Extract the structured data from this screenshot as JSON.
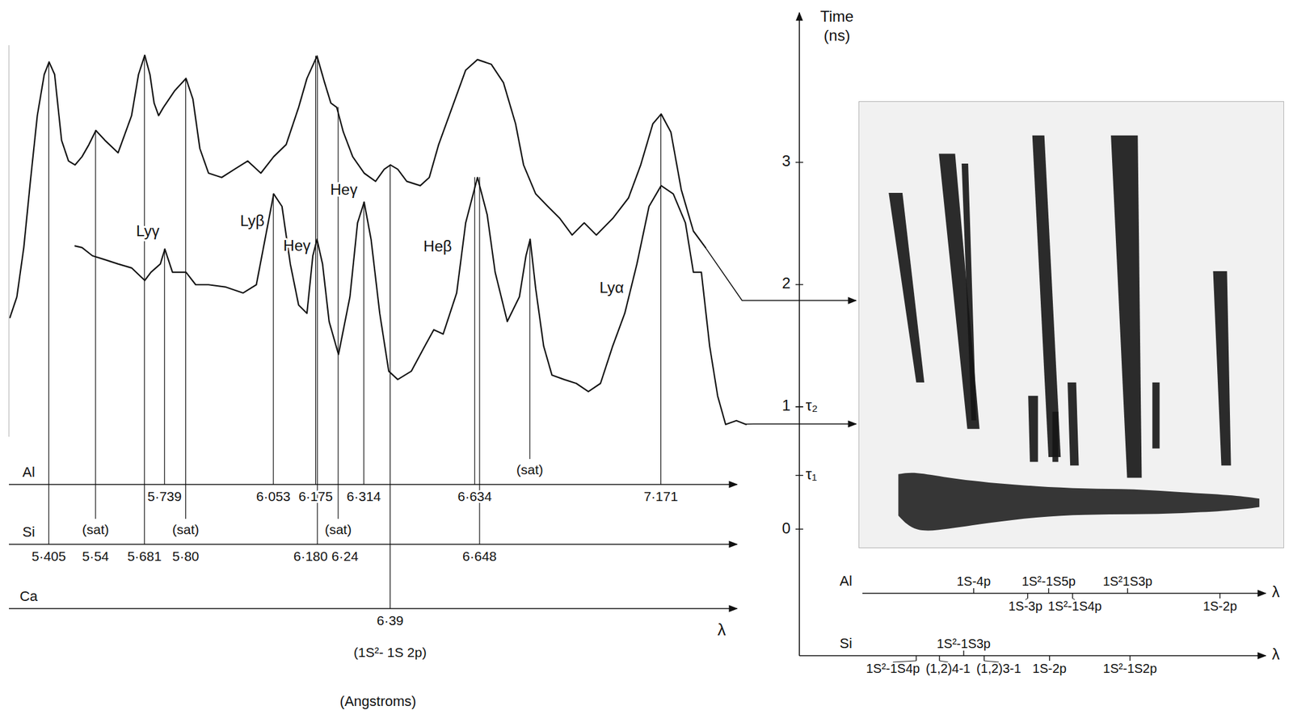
{
  "chart_data": [
    {
      "type": "line",
      "xlabel": "λ",
      "xlabel_note": "(Angstroms)",
      "xlim": [
        5.29,
        7.42
      ],
      "ylim": [
        0,
        100
      ],
      "tick_labels": "x",
      "series": [
        {
          "color": "#111111",
          "lineout_time": 1.87,
          "x": [
            5.292,
            5.312,
            5.332,
            5.351,
            5.371,
            5.391,
            5.405,
            5.421,
            5.441,
            5.461,
            5.48,
            5.5,
            5.52,
            5.54,
            5.566,
            5.604,
            5.643,
            5.663,
            5.681,
            5.696,
            5.708,
            5.721,
            5.735,
            5.767,
            5.8,
            5.82,
            5.84,
            5.865,
            5.903,
            5.94,
            5.978,
            6.016,
            6.053,
            6.089,
            6.125,
            6.149,
            6.178,
            6.2,
            6.218,
            6.235,
            6.254,
            6.281,
            6.314,
            6.347,
            6.372,
            6.39,
            6.411,
            6.437,
            6.476,
            6.502,
            6.529,
            6.568,
            6.607,
            6.641,
            6.681,
            6.716,
            6.751,
            6.774,
            6.809,
            6.844,
            6.879,
            6.914,
            6.949,
            6.984,
            7.031,
            7.077,
            7.112,
            7.147,
            7.171,
            7.199,
            7.229,
            7.264,
            7.299
          ],
          "values": [
            30.5,
            35.8,
            48.4,
            65.3,
            82.1,
            92.6,
            95.8,
            92.6,
            75.8,
            70.5,
            69.5,
            71.6,
            74.7,
            78.3,
            75.8,
            72.6,
            82.1,
            92.6,
            97.5,
            92.6,
            85.3,
            82.1,
            84.2,
            88.4,
            91.6,
            86.3,
            73.7,
            67.4,
            66.3,
            68.4,
            70.5,
            67.4,
            71.6,
            74.7,
            84.2,
            91.6,
            97.3,
            90.5,
            85.3,
            84.2,
            77.9,
            71.6,
            67.4,
            65.3,
            68.4,
            69.5,
            68.4,
            65.3,
            64.2,
            66.3,
            74.7,
            84.2,
            93.7,
            96.4,
            95.2,
            90.5,
            80.0,
            69.5,
            62.1,
            58.9,
            55.8,
            51.6,
            54.7,
            51.6,
            55.8,
            61.1,
            69.5,
            80.0,
            82.5,
            77.9,
            63.2,
            52.6,
            48.4
          ]
        },
        {
          "color": "#111111",
          "lineout_time": 0.86,
          "x": [
            5.48,
            5.5,
            5.53,
            5.566,
            5.604,
            5.643,
            5.681,
            5.699,
            5.726,
            5.739,
            5.761,
            5.8,
            5.828,
            5.865,
            5.915,
            5.965,
            6.003,
            6.028,
            6.053,
            6.077,
            6.101,
            6.125,
            6.149,
            6.166,
            6.178,
            6.194,
            6.213,
            6.24,
            6.273,
            6.295,
            6.314,
            6.334,
            6.359,
            6.385,
            6.411,
            6.45,
            6.489,
            6.515,
            6.542,
            6.581,
            6.607,
            6.641,
            6.669,
            6.692,
            6.727,
            6.762,
            6.781,
            6.793,
            6.809,
            6.832,
            6.856,
            6.891,
            6.926,
            6.961,
            6.996,
            7.031,
            7.066,
            7.101,
            7.136,
            7.171,
            7.206,
            7.241,
            7.264,
            7.287,
            7.311,
            7.334,
            7.357,
            7.388,
            7.416
          ],
          "values": [
            48.8,
            48.4,
            46.3,
            45.3,
            44.2,
            43.2,
            40.0,
            42.1,
            44.2,
            48.0,
            42.1,
            42.1,
            38.9,
            38.9,
            38.3,
            36.8,
            38.9,
            50.5,
            62.1,
            58.9,
            44.2,
            33.7,
            31.6,
            46.3,
            50.5,
            44.2,
            29.5,
            21.1,
            35.8,
            54.7,
            60.0,
            50.5,
            31.6,
            16.8,
            14.7,
            16.8,
            23.2,
            27.4,
            26.3,
            36.8,
            54.7,
            66.3,
            56.8,
            42.1,
            29.5,
            35.8,
            46.3,
            50.5,
            37.9,
            23.2,
            15.8,
            14.7,
            13.7,
            11.6,
            13.7,
            23.2,
            31.6,
            44.2,
            58.9,
            64.2,
            62.1,
            54.7,
            42.1,
            42.1,
            23.2,
            10.5,
            3.2,
            4.2,
            3.2
          ]
        }
      ],
      "element_axes": [
        {
          "name": "Al",
          "ticks": [
            {
              "value": 5.739,
              "label": "5·739",
              "series": 1,
              "line": "Lyγ"
            },
            {
              "value": 6.053,
              "label": "6·053",
              "series": 1,
              "line": "Lyβ"
            },
            {
              "value": 6.175,
              "label": "6·175",
              "series": 0,
              "line": "Heγ"
            },
            {
              "value": 6.314,
              "label": "6·314",
              "series": 1,
              "line": "Heγ"
            },
            {
              "value": 6.634,
              "label": "6·634",
              "series": 1,
              "line": "Heβ"
            },
            {
              "value": 6.793,
              "annotation": "(sat)",
              "series": 1
            },
            {
              "value": 7.171,
              "label": "7·171",
              "series": 0,
              "line": "Lyα"
            }
          ]
        },
        {
          "name": "Si",
          "ticks": [
            {
              "value": 5.405,
              "label": "5·405",
              "series": 0
            },
            {
              "value": 5.54,
              "label": "5·54",
              "annotation": "(sat)",
              "series": 0
            },
            {
              "value": 5.681,
              "label": "5·681",
              "series": 0
            },
            {
              "value": 5.8,
              "label": "5·80",
              "annotation": "(sat)",
              "series": 0
            },
            {
              "value": 6.18,
              "label": "6·180",
              "series": 0
            },
            {
              "value": 6.24,
              "label": "6·24",
              "annotation": "(sat)",
              "series": 0
            },
            {
              "value": 6.648,
              "label": "6·648",
              "series": 1
            }
          ]
        },
        {
          "name": "Ca",
          "ticks": [
            {
              "value": 6.39,
              "label": "6·39",
              "note": "(1S²- 1S 2p)",
              "series": 0
            }
          ]
        }
      ]
    },
    {
      "type": "image",
      "ylabel": "Time (ns)",
      "xlabel": "λ",
      "xlim": [
        5.07,
        7.54
      ],
      "ylim": [
        -0.15,
        3.5
      ],
      "yticks": [
        0,
        1,
        2,
        3
      ],
      "time_markers": [
        {
          "value": 0.44,
          "label": "τ₁"
        },
        {
          "value": 1,
          "label": "τ₂"
        }
      ],
      "color": "#151515",
      "streaks": [
        {
          "t": [
            2.75,
            1.2
          ],
          "x_top": [
            5.245,
            5.325
          ],
          "x_bottom": [
            5.405,
            5.452
          ]
        },
        {
          "t": [
            3.07,
            0.82
          ],
          "x_top": [
            5.537,
            5.631
          ],
          "x_bottom": [
            5.702,
            5.773
          ]
        },
        {
          "t": [
            2.99,
            0.89
          ],
          "x_top": [
            5.669,
            5.707
          ],
          "x_bottom": [
            5.726,
            5.754
          ]
        },
        {
          "t": [
            3.22,
            0.59
          ],
          "x_top": [
            6.08,
            6.15
          ],
          "x_bottom": [
            6.174,
            6.245
          ]
        },
        {
          "t": [
            1.09,
            0.55
          ],
          "x_top": [
            6.056,
            6.113
          ],
          "x_bottom": [
            6.066,
            6.113
          ]
        },
        {
          "t": [
            0.96,
            0.55
          ],
          "x_top": [
            6.197,
            6.231
          ],
          "x_bottom": [
            6.197,
            6.231
          ]
        },
        {
          "t": [
            1.2,
            0.52
          ],
          "x_top": [
            6.285,
            6.335
          ],
          "x_bottom": [
            6.3,
            6.35
          ]
        },
        {
          "t": [
            3.22,
            0.42
          ],
          "x_top": [
            6.537,
            6.693
          ],
          "x_bottom": [
            6.631,
            6.716
          ]
        },
        {
          "t": [
            1.2,
            0.66
          ],
          "x_top": [
            6.778,
            6.82
          ],
          "x_bottom": [
            6.778,
            6.82
          ]
        },
        {
          "t": [
            2.11,
            0.52
          ],
          "x_top": [
            7.131,
            7.212
          ],
          "x_bottom": [
            7.179,
            7.235
          ]
        }
      ],
      "prompt_emission": {
        "x": [
          5.301,
          5.396,
          5.584,
          5.82,
          6.103,
          6.386,
          6.669,
          6.952,
          7.235,
          7.4
        ],
        "t_low": [
          0.11,
          -0.03,
          0.0,
          0.05,
          0.1,
          0.12,
          0.12,
          0.13,
          0.15,
          0.18
        ],
        "t_high": [
          0.45,
          0.47,
          0.42,
          0.38,
          0.35,
          0.33,
          0.33,
          0.3,
          0.28,
          0.25
        ]
      },
      "element_axes": [
        {
          "name": "Al",
          "ticks": [
            {
              "value": 5.739,
              "label": "1S-4p"
            },
            {
              "value": 6.053,
              "label": "1S-3p"
            },
            {
              "value": 6.175,
              "label": "1S²-1S5p"
            },
            {
              "value": 6.314,
              "label": "1S²-1S4p"
            },
            {
              "value": 6.634,
              "label": "1S²1S3p"
            },
            {
              "value": 7.171,
              "label": "1S-2p"
            }
          ]
        },
        {
          "name": "Si",
          "ticks": [
            {
              "value": 5.405,
              "label": "1S²-1S4p"
            },
            {
              "value": 5.54,
              "label": "(1,2)4-1"
            },
            {
              "value": 5.681,
              "label": "1S²-1S3p"
            },
            {
              "value": 5.8,
              "label": "(1,2)3-1"
            },
            {
              "value": 6.18,
              "label": "1S-2p"
            },
            {
              "value": 6.648,
              "label": "1S²-1S2p"
            }
          ]
        }
      ]
    }
  ]
}
